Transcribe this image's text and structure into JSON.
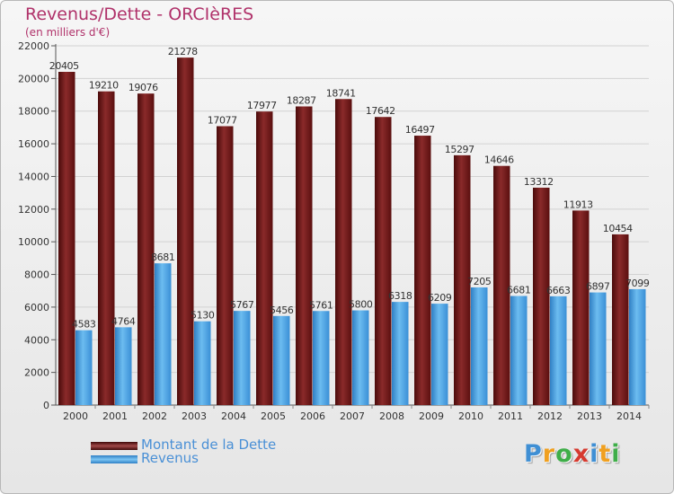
{
  "title": "Revenus/Dette - ORCIèRES",
  "subtitle": "(en milliers d'€)",
  "legend": [
    {
      "label": "Montant de la Dette",
      "color": "#6b1515"
    },
    {
      "label": "Revenus",
      "color": "#4aa3e3"
    }
  ],
  "logo": {
    "letters": [
      "P",
      "r",
      "o",
      "x",
      "i",
      "t",
      "i"
    ],
    "colors": [
      "#3f8fd4",
      "#f0a020",
      "#3fae49",
      "#d63a2f",
      "#3f8fd4",
      "#f0a020",
      "#3fae49"
    ]
  },
  "chart_data": {
    "type": "bar",
    "categories": [
      "2000",
      "2001",
      "2002",
      "2003",
      "2004",
      "2005",
      "2006",
      "2007",
      "2008",
      "2009",
      "2010",
      "2011",
      "2012",
      "2013",
      "2014"
    ],
    "series": [
      {
        "name": "Montant de la Dette",
        "color": "#6b1515",
        "values": [
          20405,
          19210,
          19076,
          21278,
          17077,
          17977,
          18287,
          18741,
          17642,
          16497,
          15297,
          14646,
          13312,
          11913,
          10454
        ]
      },
      {
        "name": "Revenus",
        "color": "#4aa3e3",
        "values": [
          4583,
          4764,
          8681,
          5130,
          5767,
          5456,
          5761,
          5800,
          6318,
          6209,
          7205,
          6681,
          6663,
          6897,
          7099
        ]
      }
    ],
    "yticks": [
      0,
      2000,
      4000,
      6000,
      8000,
      10000,
      12000,
      14000,
      16000,
      18000,
      20000,
      22000
    ],
    "ylim": [
      0,
      22000
    ],
    "grid": true,
    "legend_position": "bottom-left"
  }
}
